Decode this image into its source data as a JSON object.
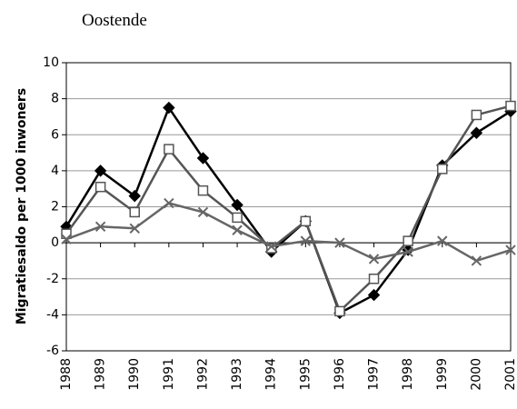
{
  "chart_data": {
    "type": "line",
    "title": "Oostende",
    "y_label": "Migratiesaldo per 1000 inwoners",
    "categories": [
      "1988",
      "1989",
      "1990",
      "1991",
      "1992",
      "1993",
      "1994",
      "1995",
      "1996",
      "1997",
      "1998",
      "1999",
      "2000",
      "2001"
    ],
    "series": [
      {
        "color": "#000000",
        "marker": "diamond",
        "values": [
          0.9,
          4.0,
          2.6,
          7.5,
          4.7,
          2.1,
          -0.5,
          1.2,
          -3.9,
          -2.9,
          -0.4,
          4.3,
          6.1,
          7.3
        ]
      },
      {
        "color": "#555555",
        "marker": "square",
        "values": [
          0.5,
          3.1,
          1.7,
          5.2,
          2.9,
          1.4,
          -0.3,
          1.2,
          -3.8,
          -2.0,
          0.1,
          4.1,
          7.1,
          7.6
        ]
      },
      {
        "color": "#666666",
        "marker": "x",
        "values": [
          0.2,
          0.9,
          0.8,
          2.2,
          1.7,
          0.7,
          -0.2,
          0.1,
          0.0,
          -0.9,
          -0.5,
          0.1,
          -1.0,
          -0.4
        ]
      }
    ],
    "ylim": [
      -6,
      10
    ],
    "yticks": [
      -6,
      -4,
      -2,
      0,
      2,
      4,
      6,
      8,
      10
    ],
    "grid": true
  }
}
